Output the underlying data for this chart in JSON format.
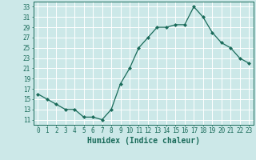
{
  "x": [
    0,
    1,
    2,
    3,
    4,
    5,
    6,
    7,
    8,
    9,
    10,
    11,
    12,
    13,
    14,
    15,
    16,
    17,
    18,
    19,
    20,
    21,
    22,
    23
  ],
  "y": [
    16,
    15,
    14,
    13,
    13,
    11.5,
    11.5,
    11,
    13,
    18,
    21,
    25,
    27,
    29,
    29,
    29.5,
    29.5,
    33,
    31,
    28,
    26,
    25,
    23,
    22
  ],
  "line_color": "#1a6b5a",
  "marker": "D",
  "marker_size": 2.0,
  "bg_color": "#cce8e8",
  "grid_color": "#ffffff",
  "xlabel": "Humidex (Indice chaleur)",
  "xlabel_fontsize": 7,
  "yticks": [
    11,
    13,
    15,
    17,
    19,
    21,
    23,
    25,
    27,
    29,
    31,
    33
  ],
  "xticks": [
    0,
    1,
    2,
    3,
    4,
    5,
    6,
    7,
    8,
    9,
    10,
    11,
    12,
    13,
    14,
    15,
    16,
    17,
    18,
    19,
    20,
    21,
    22,
    23
  ],
  "ylim": [
    10.0,
    34.0
  ],
  "xlim": [
    -0.5,
    23.5
  ],
  "tick_fontsize": 5.5,
  "tick_color": "#1a6b5a",
  "axis_color": "#1a6b5a",
  "spine_color": "#1a6b5a",
  "linewidth": 0.9
}
